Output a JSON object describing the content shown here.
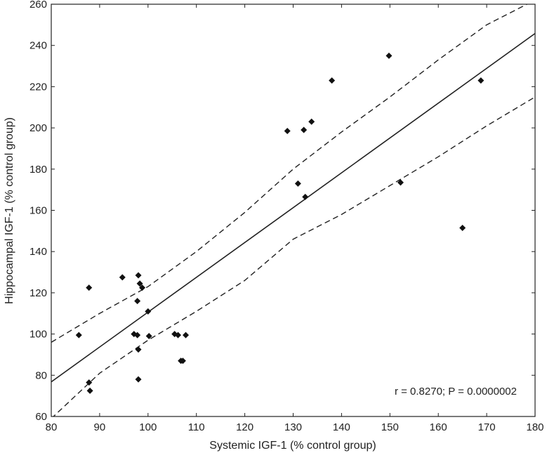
{
  "chart_data": {
    "type": "scatter",
    "title": "",
    "xlabel": "Systemic IGF-1 (% control group)",
    "ylabel": "Hippocampal IGF-1 (% control group)",
    "xlim": [
      80,
      180
    ],
    "ylim": [
      60,
      260
    ],
    "x_ticks": [
      "80",
      "90",
      "100",
      "110",
      "120",
      "130",
      "140",
      "150",
      "160",
      "170",
      "180"
    ],
    "y_ticks": [
      "60",
      "80",
      "100",
      "120",
      "140",
      "160",
      "180",
      "200",
      "220",
      "240",
      "260"
    ],
    "grid": false,
    "marker": "diamond",
    "points": [
      {
        "x": 85.7,
        "y": 99.5
      },
      {
        "x": 87.8,
        "y": 122.5
      },
      {
        "x": 87.8,
        "y": 76.5
      },
      {
        "x": 88.0,
        "y": 72.5
      },
      {
        "x": 94.7,
        "y": 127.5
      },
      {
        "x": 97.1,
        "y": 100.0
      },
      {
        "x": 97.8,
        "y": 99.5
      },
      {
        "x": 97.8,
        "y": 116.0
      },
      {
        "x": 98.0,
        "y": 128.5
      },
      {
        "x": 98.0,
        "y": 92.5
      },
      {
        "x": 98.0,
        "y": 78.0
      },
      {
        "x": 98.3,
        "y": 124.5
      },
      {
        "x": 98.8,
        "y": 122.5
      },
      {
        "x": 100.0,
        "y": 111.0
      },
      {
        "x": 100.2,
        "y": 99.0
      },
      {
        "x": 105.5,
        "y": 100.0
      },
      {
        "x": 106.2,
        "y": 99.5
      },
      {
        "x": 106.8,
        "y": 87.0
      },
      {
        "x": 107.2,
        "y": 87.0
      },
      {
        "x": 107.8,
        "y": 99.5
      },
      {
        "x": 128.8,
        "y": 198.5
      },
      {
        "x": 131.0,
        "y": 173.0
      },
      {
        "x": 132.2,
        "y": 199.0
      },
      {
        "x": 132.5,
        "y": 166.5
      },
      {
        "x": 133.8,
        "y": 203.0
      },
      {
        "x": 138.0,
        "y": 223.0
      },
      {
        "x": 149.8,
        "y": 235.0
      },
      {
        "x": 152.2,
        "y": 173.5
      },
      {
        "x": 165.0,
        "y": 151.5
      },
      {
        "x": 168.8,
        "y": 223.0
      }
    ],
    "regression": {
      "intercept": -58.4,
      "slope": 1.69
    },
    "confidence_band": {
      "x": [
        80,
        90,
        100,
        110,
        120,
        130,
        140,
        150,
        160,
        170,
        180
      ],
      "upper": [
        96,
        110,
        123,
        140,
        159,
        180,
        198,
        215,
        233,
        250,
        262
      ],
      "lower": [
        59,
        81,
        97,
        111,
        126,
        146,
        158,
        172,
        186,
        201,
        215
      ]
    },
    "annotation": "r = 0.8270; P = 0.0000002"
  }
}
